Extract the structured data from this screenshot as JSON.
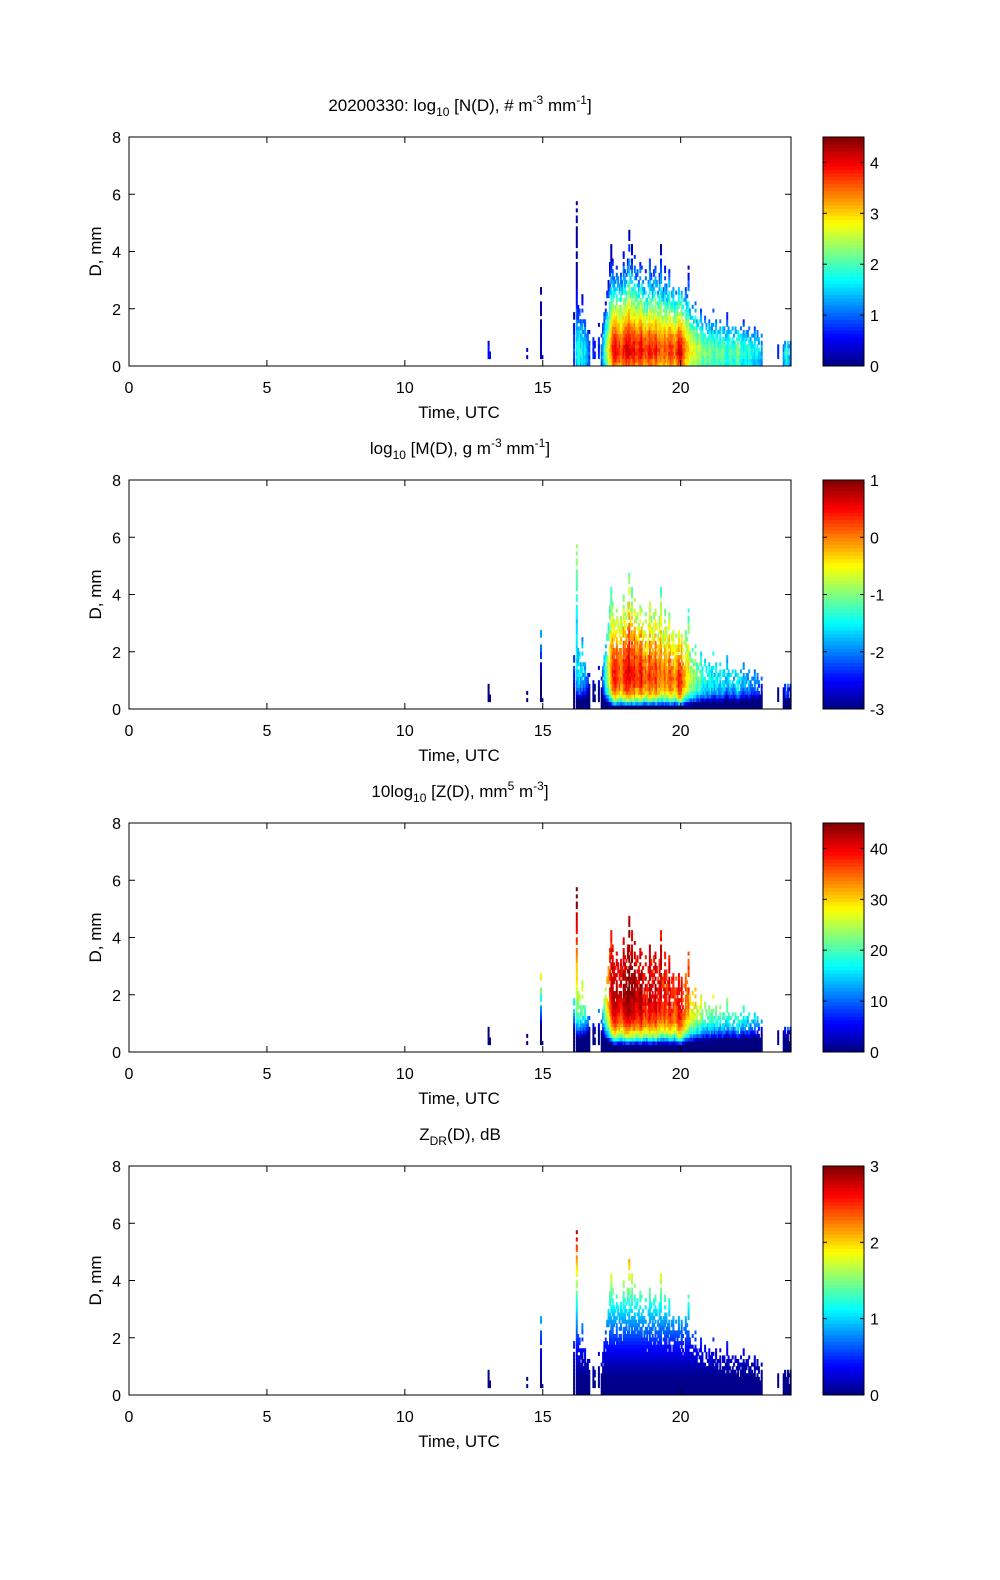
{
  "chart_data": [
    {
      "type": "heatmap",
      "title_parts": [
        "20200330: log",
        "10",
        " [N(D), # m",
        "-3",
        " mm",
        "-1",
        "]"
      ],
      "xlabel": "Time, UTC",
      "ylabel": "D, mm",
      "xlim": [
        0,
        24
      ],
      "ylim": [
        0,
        8
      ],
      "xticks": [
        "0",
        "5",
        "10",
        "15",
        "20"
      ],
      "yticks": [
        "0",
        "2",
        "4",
        "6",
        "8"
      ],
      "colorbar": {
        "range": [
          0,
          4.5
        ],
        "ticks": [
          "0",
          "1",
          "2",
          "3",
          "4"
        ],
        "colormap": "jet"
      },
      "field": "logN"
    },
    {
      "type": "heatmap",
      "title_parts": [
        "log",
        "10",
        " [M(D), g m",
        "-3",
        " mm",
        "-1",
        "]"
      ],
      "xlabel": "Time, UTC",
      "ylabel": "D, mm",
      "xlim": [
        0,
        24
      ],
      "ylim": [
        0,
        8
      ],
      "xticks": [
        "0",
        "5",
        "10",
        "15",
        "20"
      ],
      "yticks": [
        "0",
        "2",
        "4",
        "6",
        "8"
      ],
      "colorbar": {
        "range": [
          -3,
          1
        ],
        "ticks": [
          "-3",
          "-2",
          "-1",
          "0",
          "1"
        ],
        "colormap": "jet"
      },
      "field": "logM"
    },
    {
      "type": "heatmap",
      "title_parts": [
        "10log",
        "10",
        " [Z(D),  mm",
        "5",
        " m",
        "-3",
        "]"
      ],
      "xlabel": "Time, UTC",
      "ylabel": "D, mm",
      "xlim": [
        0,
        24
      ],
      "ylim": [
        0,
        8
      ],
      "xticks": [
        "0",
        "5",
        "10",
        "15",
        "20"
      ],
      "yticks": [
        "0",
        "2",
        "4",
        "6",
        "8"
      ],
      "colorbar": {
        "range": [
          0,
          45
        ],
        "ticks": [
          "0",
          "10",
          "20",
          "30",
          "40"
        ],
        "colormap": "jet"
      },
      "field": "dBZ"
    },
    {
      "type": "heatmap",
      "title_parts": [
        "Z",
        "DR",
        "(D), dB"
      ],
      "xlabel": "Time, UTC",
      "ylabel": "D, mm",
      "xlim": [
        0,
        24
      ],
      "ylim": [
        0,
        8
      ],
      "xticks": [
        "0",
        "5",
        "10",
        "15",
        "20"
      ],
      "yticks": [
        "0",
        "2",
        "4",
        "6",
        "8"
      ],
      "colorbar": {
        "range": [
          0,
          3
        ],
        "ticks": [
          "0",
          "1",
          "2",
          "3"
        ],
        "colormap": "jet"
      },
      "field": "ZDR"
    }
  ],
  "dsd_columns": {
    "description_units": [
      "time_hr",
      "max_D_mm",
      "peak_logN"
    ],
    "columns": [
      [
        13.0,
        0.9,
        0.6
      ],
      [
        13.05,
        0.8,
        0.5
      ],
      [
        14.4,
        0.6,
        0.3
      ],
      [
        14.9,
        2.7,
        0.3
      ],
      [
        14.95,
        0.4,
        0.2
      ],
      [
        15.0,
        0.2,
        0.2
      ],
      [
        16.1,
        1.9,
        1.0
      ],
      [
        16.2,
        6.0,
        1.6
      ],
      [
        16.25,
        2.1,
        1.8
      ],
      [
        16.3,
        2.1,
        2.0
      ],
      [
        16.35,
        1.8,
        1.7
      ],
      [
        16.4,
        2.5,
        1.8
      ],
      [
        16.45,
        1.6,
        1.6
      ],
      [
        16.5,
        1.8,
        1.7
      ],
      [
        16.55,
        1.4,
        1.4
      ],
      [
        16.6,
        1.3,
        1.3
      ],
      [
        16.65,
        1.2,
        1.0
      ],
      [
        16.8,
        1.0,
        0.8
      ],
      [
        16.85,
        0.9,
        0.7
      ],
      [
        17.0,
        1.5,
        0.8
      ],
      [
        17.1,
        1.2,
        1.1
      ],
      [
        17.15,
        1.6,
        1.4
      ],
      [
        17.2,
        2.1,
        1.8
      ],
      [
        17.25,
        2.2,
        2.2
      ],
      [
        17.3,
        2.6,
        2.5
      ],
      [
        17.35,
        3.0,
        2.8
      ],
      [
        17.4,
        3.6,
        3.1
      ],
      [
        17.45,
        4.2,
        3.4
      ],
      [
        17.5,
        3.8,
        3.8
      ],
      [
        17.55,
        3.2,
        4.0
      ],
      [
        17.6,
        3.0,
        4.1
      ],
      [
        17.65,
        3.5,
        4.0
      ],
      [
        17.7,
        3.3,
        3.8
      ],
      [
        17.75,
        2.9,
        3.9
      ],
      [
        17.8,
        3.6,
        3.6
      ],
      [
        17.85,
        3.0,
        3.7
      ],
      [
        17.9,
        4.0,
        3.9
      ],
      [
        17.95,
        3.4,
        4.0
      ],
      [
        18.0,
        3.2,
        4.2
      ],
      [
        18.05,
        3.8,
        4.1
      ],
      [
        18.1,
        4.8,
        4.2
      ],
      [
        18.15,
        3.6,
        4.0
      ],
      [
        18.2,
        4.2,
        3.9
      ],
      [
        18.25,
        3.4,
        4.0
      ],
      [
        18.3,
        3.9,
        4.1
      ],
      [
        18.35,
        3.2,
        3.8
      ],
      [
        18.4,
        3.6,
        3.8
      ],
      [
        18.45,
        3.0,
        3.9
      ],
      [
        18.5,
        3.8,
        4.0
      ],
      [
        18.55,
        3.5,
        4.1
      ],
      [
        18.6,
        3.0,
        3.9
      ],
      [
        18.65,
        2.8,
        3.7
      ],
      [
        18.7,
        3.4,
        3.8
      ],
      [
        18.75,
        2.6,
        3.6
      ],
      [
        18.8,
        3.0,
        3.9
      ],
      [
        18.85,
        3.8,
        4.0
      ],
      [
        18.9,
        3.2,
        3.9
      ],
      [
        18.95,
        2.9,
        3.8
      ],
      [
        19.0,
        3.4,
        3.7
      ],
      [
        19.05,
        3.7,
        3.9
      ],
      [
        19.1,
        3.0,
        4.0
      ],
      [
        19.15,
        2.8,
        3.6
      ],
      [
        19.2,
        3.3,
        3.7
      ],
      [
        19.25,
        4.2,
        3.6
      ],
      [
        19.3,
        3.0,
        3.5
      ],
      [
        19.35,
        2.7,
        3.6
      ],
      [
        19.4,
        3.5,
        3.7
      ],
      [
        19.45,
        2.9,
        3.5
      ],
      [
        19.5,
        2.6,
        3.6
      ],
      [
        19.55,
        3.4,
        3.8
      ],
      [
        19.6,
        2.8,
        3.9
      ],
      [
        19.65,
        2.6,
        3.8
      ],
      [
        19.7,
        2.9,
        3.7
      ],
      [
        19.75,
        2.4,
        3.5
      ],
      [
        19.8,
        2.6,
        3.6
      ],
      [
        19.85,
        2.4,
        3.9
      ],
      [
        19.9,
        2.8,
        4.1
      ],
      [
        19.95,
        2.3,
        4.2
      ],
      [
        20.0,
        2.6,
        4.0
      ],
      [
        20.05,
        2.2,
        3.8
      ],
      [
        20.1,
        2.4,
        3.6
      ],
      [
        20.15,
        2.8,
        3.3
      ],
      [
        20.2,
        2.5,
        3.2
      ],
      [
        20.25,
        3.5,
        3.1
      ],
      [
        20.3,
        2.0,
        3.0
      ],
      [
        20.35,
        1.8,
        2.8
      ],
      [
        20.4,
        2.2,
        2.9
      ],
      [
        20.45,
        1.7,
        2.7
      ],
      [
        20.5,
        2.3,
        2.8
      ],
      [
        20.55,
        1.6,
        2.6
      ],
      [
        20.6,
        1.5,
        2.5
      ],
      [
        20.65,
        1.8,
        2.7
      ],
      [
        20.7,
        2.0,
        2.5
      ],
      [
        20.75,
        1.5,
        2.3
      ],
      [
        20.8,
        1.4,
        2.2
      ],
      [
        20.85,
        1.7,
        2.4
      ],
      [
        20.9,
        1.5,
        2.3
      ],
      [
        20.95,
        1.3,
        2.2
      ],
      [
        21.0,
        1.6,
        2.3
      ],
      [
        21.05,
        1.4,
        2.4
      ],
      [
        21.1,
        1.5,
        2.1
      ],
      [
        21.15,
        2.0,
        2.2
      ],
      [
        21.2,
        1.3,
        2.0
      ],
      [
        21.25,
        1.6,
        2.2
      ],
      [
        21.3,
        1.2,
        2.3
      ],
      [
        21.35,
        1.4,
        2.1
      ],
      [
        21.4,
        1.7,
        2.0
      ],
      [
        21.45,
        1.3,
        2.2
      ],
      [
        21.5,
        1.4,
        2.3
      ],
      [
        21.55,
        1.5,
        2.2
      ],
      [
        21.6,
        1.2,
        2.0
      ],
      [
        21.65,
        1.9,
        1.8
      ],
      [
        21.7,
        1.4,
        2.0
      ],
      [
        21.75,
        1.2,
        2.1
      ],
      [
        21.8,
        1.3,
        2.2
      ],
      [
        21.85,
        1.6,
        2.0
      ],
      [
        21.9,
        1.2,
        1.9
      ],
      [
        21.95,
        1.4,
        2.1
      ],
      [
        22.0,
        1.2,
        2.3
      ],
      [
        22.05,
        1.3,
        2.4
      ],
      [
        22.1,
        1.1,
        2.2
      ],
      [
        22.15,
        1.5,
        2.0
      ],
      [
        22.2,
        1.2,
        1.9
      ],
      [
        22.25,
        1.6,
        1.8
      ],
      [
        22.3,
        1.1,
        2.0
      ],
      [
        22.35,
        1.3,
        1.9
      ],
      [
        22.4,
        1.2,
        1.8
      ],
      [
        22.45,
        1.4,
        2.0
      ],
      [
        22.5,
        1.0,
        1.9
      ],
      [
        22.55,
        1.3,
        1.8
      ],
      [
        22.6,
        1.1,
        1.7
      ],
      [
        22.65,
        1.4,
        1.6
      ],
      [
        22.7,
        1.0,
        1.8
      ],
      [
        22.75,
        1.2,
        1.7
      ],
      [
        22.8,
        1.0,
        1.6
      ],
      [
        22.85,
        0.9,
        1.5
      ],
      [
        22.9,
        1.1,
        1.4
      ],
      [
        23.5,
        0.8,
        0.6
      ],
      [
        23.7,
        0.9,
        1.2
      ],
      [
        23.75,
        0.9,
        1.6
      ],
      [
        23.8,
        0.8,
        2.0
      ],
      [
        23.85,
        0.9,
        1.8
      ],
      [
        23.9,
        0.7,
        1.6
      ],
      [
        23.95,
        0.9,
        1.2
      ]
    ]
  }
}
